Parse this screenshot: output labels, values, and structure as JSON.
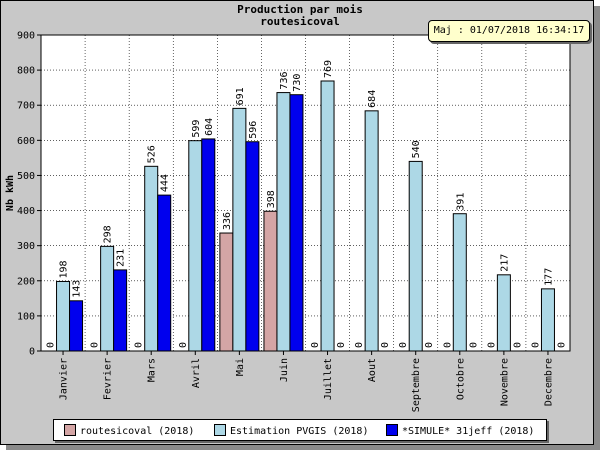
{
  "chart_data": {
    "type": "bar",
    "title": "Production par mois",
    "subtitle": "routesicoval",
    "ylabel": "Nb kWh",
    "xlabel": "",
    "ylim": [
      0,
      900
    ],
    "yticks": [
      0,
      100,
      200,
      300,
      400,
      500,
      600,
      700,
      800,
      900
    ],
    "grid": true,
    "legend_position": "bottom",
    "categories": [
      "Janvier",
      "Fevrier",
      "Mars",
      "Avril",
      "Mai",
      "Juin",
      "Juillet",
      "Aout",
      "Septembre",
      "Octobre",
      "Novembre",
      "Decembre"
    ],
    "series": [
      {
        "name": "routesicoval (2018)",
        "color": "#d4a5a5",
        "values": [
          0,
          0,
          0,
          0,
          336,
          398,
          0,
          0,
          0,
          0,
          0,
          0
        ]
      },
      {
        "name": "Estimation PVGIS (2018)",
        "color": "#add8e6",
        "values": [
          198,
          298,
          526,
          599,
          691,
          736,
          769,
          684,
          540,
          391,
          217,
          177
        ]
      },
      {
        "name": "*SIMULE* 31jeff (2018)",
        "color": "#0000ee",
        "values": [
          143,
          231,
          444,
          604,
          596,
          730,
          0,
          0,
          0,
          0,
          0,
          0
        ]
      }
    ]
  },
  "maj_label": "Maj : 01/07/2018 16:34:17"
}
